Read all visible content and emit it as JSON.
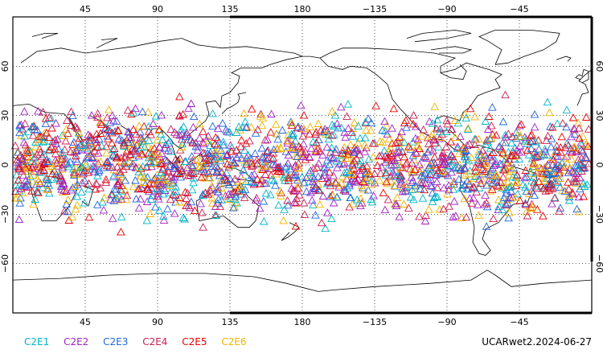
{
  "map": {
    "projection": "cylindrical-equidistant",
    "center_longitude": 180,
    "lon_range": [
      0,
      360
    ],
    "lat_range": [
      -90,
      90
    ],
    "grid": "dotted",
    "frame_color": "#000000",
    "coast_color": "#000000",
    "lon_ticks": [
      {
        "value": 45,
        "label": "45"
      },
      {
        "value": 90,
        "label": "90"
      },
      {
        "value": 135,
        "label": "135"
      },
      {
        "value": 180,
        "label": "180"
      },
      {
        "value": 225,
        "label": "−135"
      },
      {
        "value": 270,
        "label": "−90"
      },
      {
        "value": 315,
        "label": "−45"
      }
    ],
    "lat_ticks": [
      {
        "value": 60,
        "label": "60"
      },
      {
        "value": 30,
        "label": "30"
      },
      {
        "value": 0,
        "label": "0"
      },
      {
        "value": -30,
        "label": "−30"
      },
      {
        "value": -60,
        "label": "−60"
      }
    ]
  },
  "legend": [
    {
      "label": "C2E1",
      "color": "#00b4c8",
      "icon": "triangle-outline"
    },
    {
      "label": "C2E2",
      "color": "#a020c8",
      "icon": "triangle-outline"
    },
    {
      "label": "C2E3",
      "color": "#1e64dc",
      "icon": "triangle-outline"
    },
    {
      "label": "C2E4",
      "color": "#c81e50",
      "icon": "triangle-outline"
    },
    {
      "label": "C2E5",
      "color": "#e60000",
      "icon": "triangle-outline"
    },
    {
      "label": "C2E6",
      "color": "#f0b400",
      "icon": "triangle-outline"
    }
  ],
  "footer": {
    "label": "UCARwet2.2024-06-27"
  },
  "observations": {
    "lat_extent": [
      -45,
      45
    ],
    "density": "high"
  }
}
